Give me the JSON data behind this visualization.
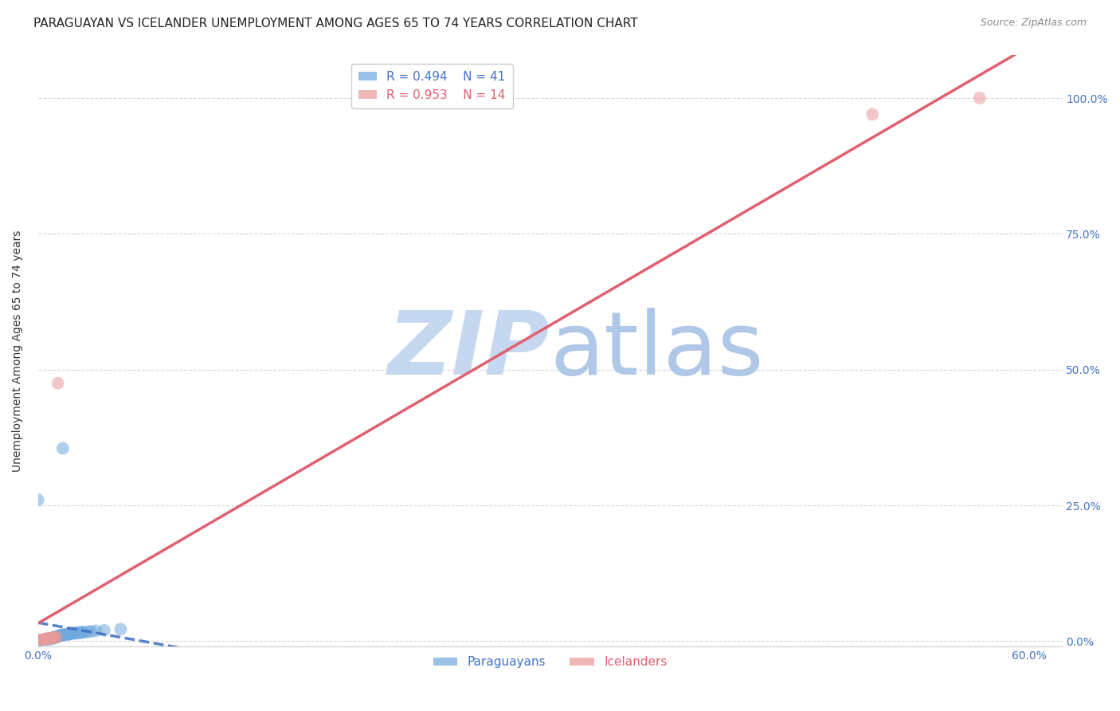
{
  "title": "PARAGUAYAN VS ICELANDER UNEMPLOYMENT AMONG AGES 65 TO 74 YEARS CORRELATION CHART",
  "source": "Source: ZipAtlas.com",
  "ylabel": "Unemployment Among Ages 65 to 74 years",
  "xlim": [
    0.0,
    0.62
  ],
  "ylim": [
    -0.01,
    1.08
  ],
  "xticks": [
    0.0,
    0.1,
    0.2,
    0.3,
    0.4,
    0.5,
    0.6
  ],
  "xticklabels": [
    "0.0%",
    "",
    "",
    "",
    "",
    "",
    "60.0%"
  ],
  "yticks": [
    0.0,
    0.25,
    0.5,
    0.75,
    1.0
  ],
  "yticklabels": [
    "0.0%",
    "25.0%",
    "50.0%",
    "75.0%",
    "100.0%"
  ],
  "legend_paraguayan_label": "Paraguayans",
  "legend_icelander_label": "Icelanders",
  "R_paraguayan": "0.494",
  "N_paraguayan": "41",
  "R_icelander": "0.953",
  "N_icelander": "14",
  "color_paraguayan": "#6fa8dc",
  "color_icelander": "#ea9999",
  "color_paraguayan_line": "#3d6dbf",
  "color_icelander_line": "#e06070",
  "color_axis_labels": "#4472c4",
  "color_title": "#222222",
  "watermark_zip": "#c5d8f0",
  "watermark_atlas": "#b0c8e8",
  "paraguayan_x": [
    0.0,
    0.0,
    0.004,
    0.005,
    0.006,
    0.007,
    0.008,
    0.009,
    0.01,
    0.01,
    0.01,
    0.01,
    0.011,
    0.011,
    0.012,
    0.012,
    0.013,
    0.013,
    0.014,
    0.015,
    0.015,
    0.016,
    0.017,
    0.018,
    0.019,
    0.02,
    0.02,
    0.021,
    0.022,
    0.023,
    0.024,
    0.025,
    0.026,
    0.027,
    0.028,
    0.03,
    0.032,
    0.035,
    0.04,
    0.05,
    0.0
  ],
  "paraguayan_y": [
    0.0,
    0.0,
    0.003,
    0.004,
    0.003,
    0.005,
    0.004,
    0.006,
    0.006,
    0.007,
    0.007,
    0.008,
    0.007,
    0.008,
    0.009,
    0.009,
    0.01,
    0.01,
    0.011,
    0.011,
    0.012,
    0.012,
    0.013,
    0.012,
    0.013,
    0.014,
    0.014,
    0.015,
    0.014,
    0.015,
    0.016,
    0.015,
    0.016,
    0.017,
    0.016,
    0.017,
    0.018,
    0.019,
    0.02,
    0.022,
    0.26
  ],
  "paraguayan_x2": [
    0.015
  ],
  "paraguayan_y2": [
    0.355
  ],
  "icelander_x": [
    0.0,
    0.0,
    0.003,
    0.004,
    0.005,
    0.006,
    0.007,
    0.008,
    0.009,
    0.01,
    0.011,
    0.012,
    0.505,
    0.57
  ],
  "icelander_y": [
    0.002,
    0.003,
    0.003,
    0.004,
    0.004,
    0.005,
    0.005,
    0.006,
    0.006,
    0.007,
    0.007,
    0.475,
    0.97,
    1.0
  ],
  "background_color": "#ffffff",
  "grid_color": "#cccccc",
  "title_fontsize": 11,
  "axis_label_fontsize": 10,
  "tick_fontsize": 10,
  "legend_fontsize": 11
}
